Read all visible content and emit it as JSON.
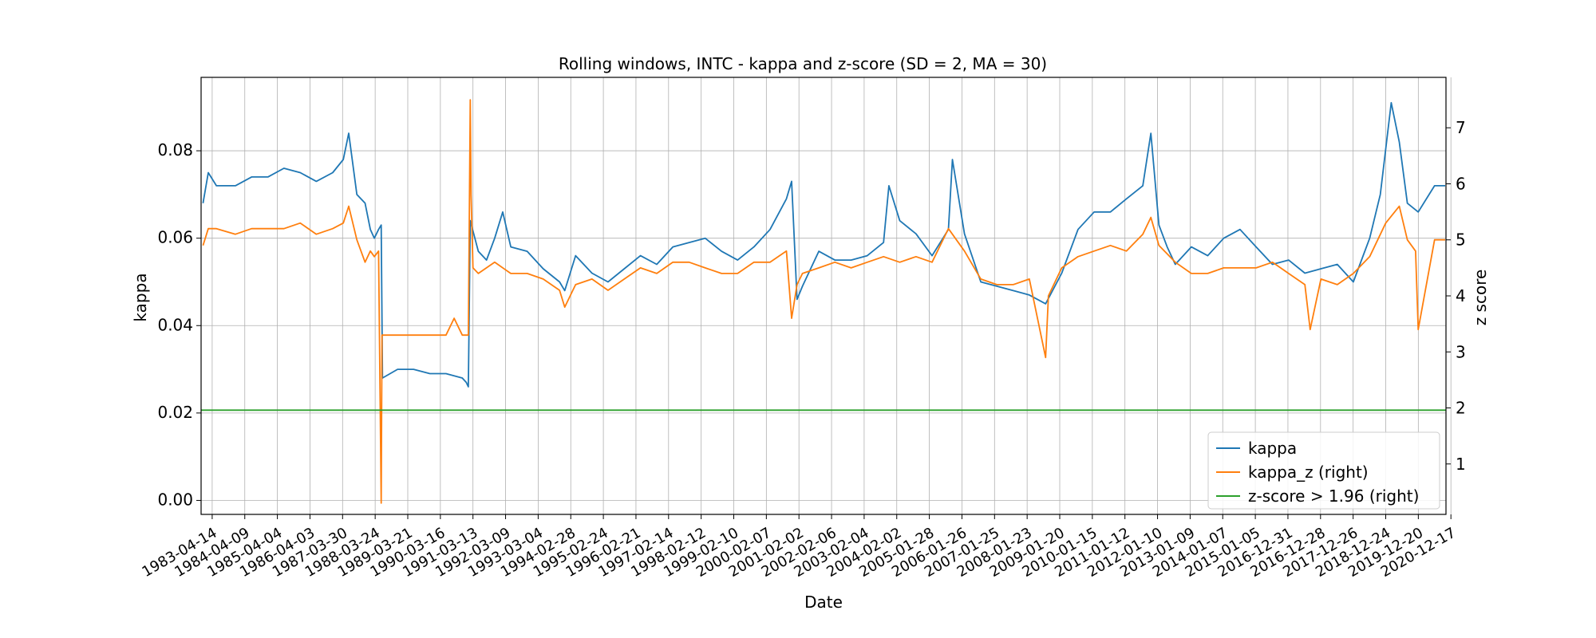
{
  "chart_data": {
    "type": "line",
    "title": "Rolling windows, INTC - kappa and z-score (SD = 2, MA = 30)",
    "xlabel": "Date",
    "ylabel": "kappa",
    "y2label": "z score",
    "xlim": [
      "1982-12-10",
      "2021-05-10"
    ],
    "ylim": [
      -0.0032,
      0.0968
    ],
    "y2lim": [
      0.1,
      7.9
    ],
    "x_ticks": [
      "1983-04-14",
      "1984-04-09",
      "1985-04-04",
      "1986-04-03",
      "1987-03-30",
      "1988-03-24",
      "1989-03-21",
      "1990-03-16",
      "1991-03-13",
      "1992-03-09",
      "1993-03-04",
      "1994-02-28",
      "1995-02-24",
      "1996-02-21",
      "1997-02-14",
      "1998-02-12",
      "1999-02-10",
      "2000-02-07",
      "2001-02-02",
      "2002-02-06",
      "2003-02-04",
      "2004-02-02",
      "2005-01-28",
      "2006-01-26",
      "2007-01-25",
      "2008-01-23",
      "2009-01-20",
      "2010-01-15",
      "2011-01-12",
      "2012-01-10",
      "2013-01-09",
      "2014-01-07",
      "2015-01-05",
      "2016-12-31",
      "2016-12-28",
      "2017-12-26",
      "2018-12-24",
      "2019-12-20",
      "2020-12-17"
    ],
    "y_ticks": [
      "0.00",
      "0.02",
      "0.04",
      "0.06",
      "0.08"
    ],
    "y2_ticks": [
      "1",
      "2",
      "3",
      "4",
      "5",
      "6",
      "7"
    ],
    "grid": true,
    "legend_position": "bottom-right",
    "series": [
      {
        "name": "kappa",
        "axis": "left",
        "color": "#1f77b4",
        "x": [
          "1983-01-01",
          "1983-03-01",
          "1983-06-01",
          "1984-01-01",
          "1984-07-01",
          "1985-01-01",
          "1985-07-01",
          "1986-01-01",
          "1986-07-01",
          "1987-01-01",
          "1987-05-01",
          "1987-07-01",
          "1987-10-01",
          "1988-01-01",
          "1988-03-01",
          "1988-04-15",
          "1988-06-01",
          "1988-07-01",
          "1988-07-15",
          "1989-01-01",
          "1989-07-01",
          "1990-01-01",
          "1990-07-01",
          "1991-01-01",
          "1991-02-15",
          "1991-03-10",
          "1991-04-01",
          "1991-07-01",
          "1991-10-01",
          "1992-01-01",
          "1992-04-01",
          "1992-07-01",
          "1993-01-01",
          "1993-07-01",
          "1994-01-01",
          "1994-03-01",
          "1994-07-01",
          "1995-01-01",
          "1995-07-01",
          "1996-01-01",
          "1996-07-01",
          "1997-01-01",
          "1997-07-01",
          "1998-01-01",
          "1998-07-01",
          "1999-01-01",
          "1999-07-01",
          "2000-01-01",
          "2000-07-01",
          "2001-01-01",
          "2001-03-01",
          "2001-05-01",
          "2001-07-01",
          "2002-01-01",
          "2002-07-01",
          "2003-01-01",
          "2003-07-01",
          "2004-01-01",
          "2004-03-01",
          "2004-07-01",
          "2005-01-01",
          "2005-07-01",
          "2006-01-01",
          "2006-02-15",
          "2006-07-01",
          "2007-01-01",
          "2007-07-01",
          "2008-01-01",
          "2008-07-01",
          "2009-01-01",
          "2009-07-01",
          "2010-01-01",
          "2010-07-01",
          "2011-01-01",
          "2011-07-01",
          "2012-01-01",
          "2012-04-01",
          "2012-07-01",
          "2012-10-01",
          "2013-01-01",
          "2013-07-01",
          "2014-01-01",
          "2014-07-01",
          "2015-01-01",
          "2015-07-01",
          "2016-01-01",
          "2016-07-01",
          "2017-01-01",
          "2017-07-01",
          "2018-01-01",
          "2018-07-01",
          "2019-01-01",
          "2019-05-01",
          "2019-09-01",
          "2019-12-01",
          "2020-03-01",
          "2020-07-01",
          "2021-01-01",
          "2021-05-01"
        ],
        "y": [
          0.068,
          0.075,
          0.072,
          0.072,
          0.074,
          0.074,
          0.076,
          0.075,
          0.073,
          0.075,
          0.078,
          0.084,
          0.07,
          0.068,
          0.062,
          0.06,
          0.062,
          0.063,
          0.028,
          0.03,
          0.03,
          0.029,
          0.029,
          0.028,
          0.027,
          0.026,
          0.064,
          0.057,
          0.055,
          0.06,
          0.066,
          0.058,
          0.057,
          0.053,
          0.05,
          0.048,
          0.056,
          0.052,
          0.05,
          0.053,
          0.056,
          0.054,
          0.058,
          0.059,
          0.06,
          0.057,
          0.055,
          0.058,
          0.062,
          0.069,
          0.073,
          0.046,
          0.049,
          0.057,
          0.055,
          0.055,
          0.056,
          0.059,
          0.072,
          0.064,
          0.061,
          0.056,
          0.062,
          0.078,
          0.061,
          0.05,
          0.049,
          0.048,
          0.047,
          0.045,
          0.052,
          0.062,
          0.066,
          0.066,
          0.069,
          0.072,
          0.084,
          0.063,
          0.058,
          0.054,
          0.058,
          0.056,
          0.06,
          0.062,
          0.058,
          0.054,
          0.055,
          0.052,
          0.053,
          0.054,
          0.05,
          0.06,
          0.07,
          0.091,
          0.082,
          0.068,
          0.066,
          0.072,
          0.072
        ]
      },
      {
        "name": "kappa_z (right)",
        "axis": "right",
        "color": "#ff7f0e",
        "x": [
          "1983-01-01",
          "1983-03-01",
          "1983-06-01",
          "1984-01-01",
          "1984-07-01",
          "1985-01-01",
          "1985-07-01",
          "1986-01-01",
          "1986-07-01",
          "1987-01-01",
          "1987-05-01",
          "1987-07-01",
          "1987-10-01",
          "1988-01-01",
          "1988-03-01",
          "1988-04-15",
          "1988-06-01",
          "1988-07-01",
          "1988-07-10",
          "1988-07-15",
          "1989-01-01",
          "1989-07-01",
          "1990-01-01",
          "1990-07-01",
          "1990-10-01",
          "1991-01-01",
          "1991-03-10",
          "1991-04-01",
          "1991-04-10",
          "1991-05-01",
          "1991-07-01",
          "1992-01-01",
          "1992-07-01",
          "1993-01-01",
          "1993-07-01",
          "1994-01-01",
          "1994-03-01",
          "1994-07-01",
          "1995-01-01",
          "1995-07-01",
          "1996-01-01",
          "1996-07-01",
          "1997-01-01",
          "1997-07-01",
          "1998-01-01",
          "1998-07-01",
          "1999-01-01",
          "1999-07-01",
          "2000-01-01",
          "2000-07-01",
          "2001-01-01",
          "2001-03-01",
          "2001-05-01",
          "2001-07-01",
          "2002-01-01",
          "2002-07-01",
          "2003-01-01",
          "2003-07-01",
          "2004-01-01",
          "2004-07-01",
          "2005-01-01",
          "2005-07-01",
          "2006-01-01",
          "2006-07-01",
          "2007-01-01",
          "2007-07-01",
          "2008-01-01",
          "2008-07-01",
          "2009-01-01",
          "2009-02-01",
          "2009-07-01",
          "2010-01-01",
          "2010-07-01",
          "2011-01-01",
          "2011-07-01",
          "2012-01-01",
          "2012-04-01",
          "2012-07-01",
          "2013-01-01",
          "2013-07-01",
          "2014-01-01",
          "2014-07-01",
          "2015-01-01",
          "2015-07-01",
          "2016-01-01",
          "2016-07-01",
          "2017-01-01",
          "2017-03-01",
          "2017-07-01",
          "2018-01-01",
          "2018-07-01",
          "2019-01-01",
          "2019-07-01",
          "2019-12-01",
          "2020-03-01",
          "2020-06-01",
          "2020-07-01",
          "2021-01-01",
          "2021-05-01"
        ],
        "y": [
          4.9,
          5.2,
          5.2,
          5.1,
          5.2,
          5.2,
          5.2,
          5.3,
          5.1,
          5.2,
          5.3,
          5.6,
          5.0,
          4.6,
          4.8,
          4.7,
          4.8,
          0.3,
          3.3,
          3.3,
          3.3,
          3.3,
          3.3,
          3.3,
          3.6,
          3.3,
          3.3,
          7.5,
          5.8,
          4.5,
          4.4,
          4.6,
          4.4,
          4.4,
          4.3,
          4.1,
          3.8,
          4.2,
          4.3,
          4.1,
          4.3,
          4.5,
          4.4,
          4.6,
          4.6,
          4.5,
          4.4,
          4.4,
          4.6,
          4.6,
          4.8,
          3.6,
          4.2,
          4.4,
          4.5,
          4.6,
          4.5,
          4.6,
          4.7,
          4.6,
          4.7,
          4.6,
          5.2,
          4.8,
          4.3,
          4.2,
          4.2,
          4.3,
          2.9,
          4.0,
          4.5,
          4.7,
          4.8,
          4.9,
          4.8,
          5.1,
          5.4,
          4.9,
          4.6,
          4.4,
          4.4,
          4.5,
          4.5,
          4.5,
          4.6,
          4.4,
          4.2,
          3.4,
          4.3,
          4.2,
          4.4,
          4.7,
          5.3,
          5.6,
          5.0,
          4.8,
          3.4,
          5.0,
          5.0
        ]
      },
      {
        "name": "z-score > 1.96 (right)",
        "axis": "right",
        "color": "#2ca02c",
        "x": [
          "1982-12-10",
          "2021-05-10"
        ],
        "y": [
          1.96,
          1.96
        ]
      }
    ]
  }
}
